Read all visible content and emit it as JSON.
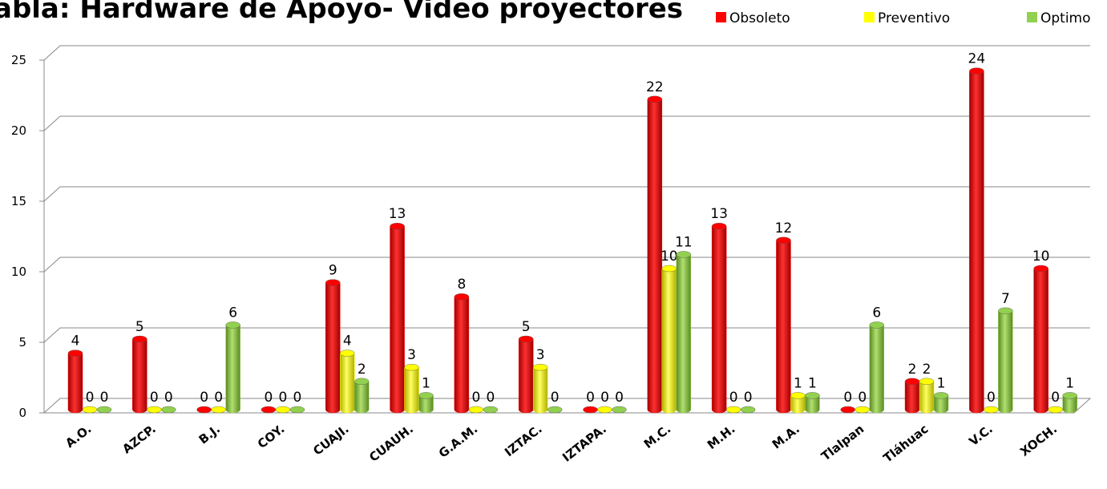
{
  "chart_data": {
    "type": "bar3d",
    "title": "abla: Hardware de Apoyo- Video proyectores",
    "categories": [
      "A.O.",
      "AZCP.",
      "B.J.",
      "COY.",
      "CUAJI.",
      "CUAUH.",
      "G.A.M.",
      "IZTAC.",
      "IZTAPA.",
      "M.C.",
      "M.H.",
      "M.A.",
      "Tlalpan",
      "Tláhuac",
      "V.C.",
      "XOCH."
    ],
    "series": [
      {
        "name": "Obsoleto",
        "color": "#ff0000",
        "values": [
          4,
          5,
          0,
          0,
          9,
          13,
          8,
          5,
          0,
          22,
          13,
          12,
          0,
          2,
          24,
          10
        ]
      },
      {
        "name": "Preventivo",
        "color": "#ffff00",
        "values": [
          0,
          0,
          0,
          0,
          4,
          3,
          0,
          3,
          0,
          10,
          0,
          1,
          0,
          2,
          0,
          0
        ]
      },
      {
        "name": "Optimo",
        "color": "#92d050",
        "values": [
          0,
          0,
          6,
          0,
          2,
          1,
          0,
          0,
          0,
          11,
          0,
          1,
          6,
          1,
          7,
          1
        ]
      }
    ],
    "ylim": [
      0,
      25
    ],
    "yticks": [
      0,
      5,
      10,
      15,
      20,
      25
    ],
    "grid": true,
    "legend": "top-right"
  }
}
